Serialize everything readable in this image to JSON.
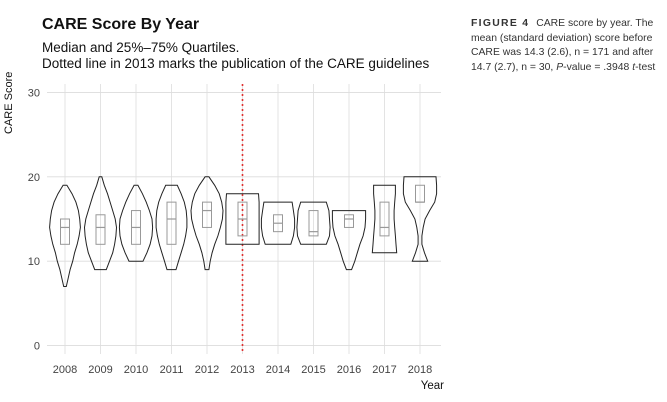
{
  "chart_data": {
    "type": "violin",
    "title": "CARE Score By Year",
    "subtitle": [
      "Median and 25%–75% Quartiles.",
      "Dotted line in 2013 marks the publication of the CARE guidelines"
    ],
    "xlabel": "Year",
    "ylabel": "CARE Score",
    "categories": [
      "2008",
      "2009",
      "2010",
      "2011",
      "2012",
      "2013",
      "2014",
      "2015",
      "2016",
      "2017",
      "2018"
    ],
    "y_ticks": [
      0,
      10,
      20,
      30
    ],
    "ylim": [
      -1,
      31
    ],
    "grid": true,
    "reference_line": {
      "x": "2013",
      "style": "dotted",
      "color": "#e03030"
    },
    "series": [
      {
        "year": "2008",
        "median": 14,
        "q1": 12,
        "q3": 15,
        "min": 7,
        "max": 19,
        "violin": [
          [
            7,
            0.04
          ],
          [
            8,
            0.1
          ],
          [
            9,
            0.16
          ],
          [
            10,
            0.24
          ],
          [
            11,
            0.3
          ],
          [
            12,
            0.38
          ],
          [
            13,
            0.44
          ],
          [
            14,
            0.48
          ],
          [
            15,
            0.46
          ],
          [
            16,
            0.42
          ],
          [
            17,
            0.34
          ],
          [
            18,
            0.22
          ],
          [
            19,
            0.06
          ]
        ]
      },
      {
        "year": "2009",
        "median": 14,
        "q1": 12,
        "q3": 15.5,
        "min": 9,
        "max": 20,
        "violin": [
          [
            9,
            0.18
          ],
          [
            10,
            0.28
          ],
          [
            11,
            0.38
          ],
          [
            12,
            0.44
          ],
          [
            13,
            0.48
          ],
          [
            14,
            0.5
          ],
          [
            15,
            0.46
          ],
          [
            16,
            0.38
          ],
          [
            17,
            0.3
          ],
          [
            18,
            0.22
          ],
          [
            19,
            0.12
          ],
          [
            20,
            0.04
          ]
        ]
      },
      {
        "year": "2010",
        "median": 14,
        "q1": 12,
        "q3": 16,
        "min": 10,
        "max": 19,
        "violin": [
          [
            10,
            0.22
          ],
          [
            11,
            0.34
          ],
          [
            12,
            0.44
          ],
          [
            13,
            0.5
          ],
          [
            14,
            0.52
          ],
          [
            15,
            0.5
          ],
          [
            16,
            0.42
          ],
          [
            17,
            0.32
          ],
          [
            18,
            0.2
          ],
          [
            19,
            0.06
          ]
        ]
      },
      {
        "year": "2011",
        "median": 15,
        "q1": 12,
        "q3": 17,
        "min": 9,
        "max": 19,
        "violin": [
          [
            9,
            0.14
          ],
          [
            10,
            0.22
          ],
          [
            11,
            0.3
          ],
          [
            12,
            0.38
          ],
          [
            13,
            0.44
          ],
          [
            14,
            0.48
          ],
          [
            15,
            0.48
          ],
          [
            16,
            0.46
          ],
          [
            17,
            0.4
          ],
          [
            18,
            0.3
          ],
          [
            19,
            0.18
          ]
        ]
      },
      {
        "year": "2012",
        "median": 16,
        "q1": 14,
        "q3": 17,
        "min": 9,
        "max": 20,
        "violin": [
          [
            9,
            0.06
          ],
          [
            10,
            0.1
          ],
          [
            11,
            0.16
          ],
          [
            12,
            0.24
          ],
          [
            13,
            0.34
          ],
          [
            14,
            0.42
          ],
          [
            15,
            0.48
          ],
          [
            16,
            0.5
          ],
          [
            17,
            0.46
          ],
          [
            18,
            0.38
          ],
          [
            19,
            0.24
          ],
          [
            20,
            0.06
          ]
        ]
      },
      {
        "year": "2013",
        "median": 15,
        "q1": 13,
        "q3": 17,
        "min": 12,
        "max": 18,
        "violin": [
          [
            12,
            0.52
          ],
          [
            13,
            0.52
          ],
          [
            14,
            0.52
          ],
          [
            15,
            0.52
          ],
          [
            16,
            0.52
          ],
          [
            17,
            0.52
          ],
          [
            18,
            0.5
          ]
        ]
      },
      {
        "year": "2014",
        "median": 14.5,
        "q1": 13.5,
        "q3": 15.5,
        "min": 12,
        "max": 17,
        "violin": [
          [
            12,
            0.4
          ],
          [
            13,
            0.48
          ],
          [
            14,
            0.52
          ],
          [
            15,
            0.52
          ],
          [
            16,
            0.48
          ],
          [
            17,
            0.44
          ]
        ]
      },
      {
        "year": "2015",
        "median": 13.5,
        "q1": 13,
        "q3": 16,
        "min": 12,
        "max": 17,
        "violin": [
          [
            12,
            0.4
          ],
          [
            13,
            0.5
          ],
          [
            14,
            0.52
          ],
          [
            15,
            0.5
          ],
          [
            16,
            0.48
          ],
          [
            17,
            0.4
          ]
        ]
      },
      {
        "year": "2016",
        "median": 15,
        "q1": 14,
        "q3": 15.5,
        "min": 9,
        "max": 16,
        "violin": [
          [
            9,
            0.08
          ],
          [
            10,
            0.18
          ],
          [
            11,
            0.26
          ],
          [
            12,
            0.34
          ],
          [
            13,
            0.44
          ],
          [
            14,
            0.5
          ],
          [
            15,
            0.52
          ],
          [
            16,
            0.52
          ]
        ]
      },
      {
        "year": "2017",
        "median": 14,
        "q1": 13,
        "q3": 17,
        "min": 11,
        "max": 19,
        "violin": [
          [
            11,
            0.38
          ],
          [
            12,
            0.36
          ],
          [
            13,
            0.34
          ],
          [
            14,
            0.32
          ],
          [
            15,
            0.3
          ],
          [
            16,
            0.3
          ],
          [
            17,
            0.32
          ],
          [
            18,
            0.34
          ],
          [
            19,
            0.34
          ]
        ]
      },
      {
        "year": "2018",
        "median": 17,
        "q1": 17,
        "q3": 19,
        "min": 10,
        "max": 20,
        "violin": [
          [
            10,
            0.24
          ],
          [
            11,
            0.14
          ],
          [
            12,
            0.06
          ],
          [
            13,
            0.06
          ],
          [
            14,
            0.1
          ],
          [
            15,
            0.16
          ],
          [
            16,
            0.3
          ],
          [
            17,
            0.46
          ],
          [
            18,
            0.52
          ],
          [
            19,
            0.52
          ],
          [
            20,
            0.5
          ]
        ]
      }
    ]
  },
  "caption": {
    "label": "FIGURE 4",
    "text_before_p": "CARE score by year. The mean (standard deviation) score before CARE was 14.3 (2.6), n = 171 and after 14.7 (2.7), n = 30,",
    "p_label": "P",
    "text_after_p": "-value = .3948",
    "test_label": "t",
    "text_end": "-test"
  },
  "colors": {
    "grid": "#dcdcdc",
    "violin_stroke": "#222222",
    "box_stroke": "#999999",
    "reference_line": "#e03030"
  }
}
